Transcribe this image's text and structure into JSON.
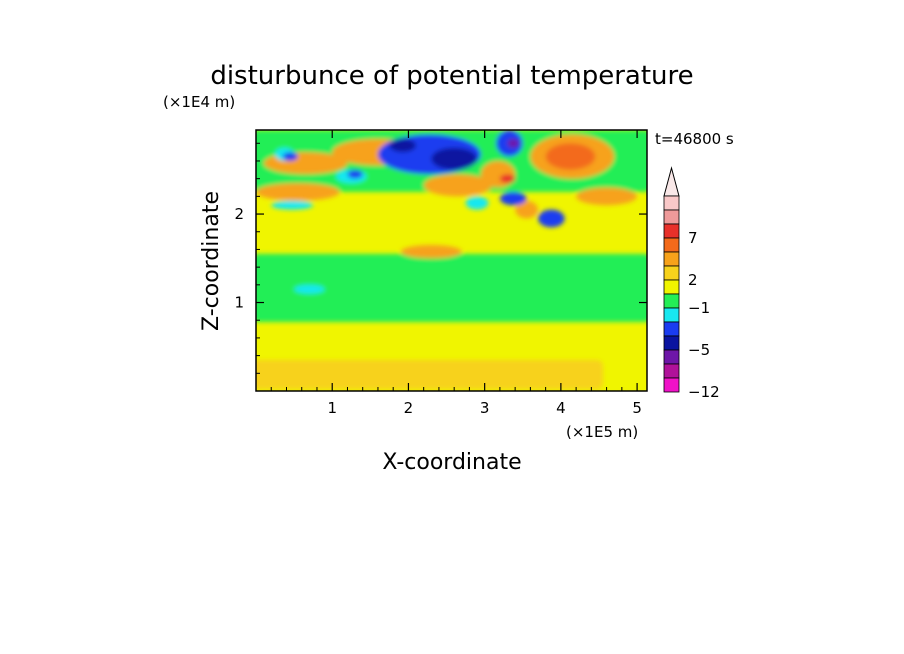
{
  "chart_data": {
    "type": "heatmap",
    "title": "disturbunce of potential temperature",
    "xlabel": "X-coordinate",
    "ylabel": "Z-coordinate",
    "x_unit": "(×1E5 m)",
    "y_unit": "(×1E4 m)",
    "time_label": "t=46800 s",
    "xlim": [
      0,
      5.13
    ],
    "ylim": [
      0,
      2.95
    ],
    "x_ticks": [
      {
        "value": 1,
        "label": "1"
      },
      {
        "value": 2,
        "label": "2"
      },
      {
        "value": 3,
        "label": "3"
      },
      {
        "value": 4,
        "label": "4"
      },
      {
        "value": 5,
        "label": "5"
      }
    ],
    "y_ticks": [
      {
        "value": 1,
        "label": "1"
      },
      {
        "value": 2,
        "label": "2"
      }
    ],
    "colorbar": {
      "labels": [
        {
          "value": 7,
          "label": "7"
        },
        {
          "value": 2,
          "label": "2"
        },
        {
          "value": -1,
          "label": "−1"
        },
        {
          "value": -5,
          "label": "−5"
        },
        {
          "value": -12,
          "label": "−12"
        }
      ],
      "levels_top_to_bottom": [
        {
          "color": "#f9c8c8"
        },
        {
          "color": "#ef9a9a"
        },
        {
          "color": "#e8302a"
        },
        {
          "color": "#f36a1a"
        },
        {
          "color": "#f7a21a"
        },
        {
          "color": "#f7d21c"
        },
        {
          "color": "#f0f500"
        },
        {
          "color": "#24ee56"
        },
        {
          "color": "#18e8f0"
        },
        {
          "color": "#1a3cf0"
        },
        {
          "color": "#0a14a0"
        },
        {
          "color": "#6e16a8"
        },
        {
          "color": "#b0129a"
        },
        {
          "color": "#f012c8"
        }
      ],
      "top_extension_color": "#f9e8e8"
    },
    "field": {
      "background": "#f0f500",
      "regions": [
        {
          "level": "green",
          "color": "#24ee56",
          "x": [
            0.0,
            5.13
          ],
          "z": [
            0.78,
            1.55
          ]
        },
        {
          "level": "green",
          "color": "#24ee56",
          "x": [
            0.0,
            5.13
          ],
          "z": [
            2.25,
            2.95
          ]
        },
        {
          "level": "orange",
          "color": "#f7a21a",
          "x": [
            0.1,
            1.2
          ],
          "z": [
            2.45,
            2.7
          ]
        },
        {
          "level": "orange",
          "color": "#f7a21a",
          "x": [
            1.0,
            2.2
          ],
          "z": [
            2.55,
            2.85
          ]
        },
        {
          "level": "orange",
          "color": "#f7a21a",
          "x": [
            2.2,
            3.1
          ],
          "z": [
            2.2,
            2.45
          ]
        },
        {
          "level": "orange",
          "color": "#f7a21a",
          "x": [
            3.6,
            4.7
          ],
          "z": [
            2.4,
            2.9
          ]
        },
        {
          "level": "dark-orange",
          "color": "#f36a1a",
          "x": [
            3.8,
            4.45
          ],
          "z": [
            2.5,
            2.8
          ]
        },
        {
          "level": "orange",
          "color": "#f7a21a",
          "x": [
            2.95,
            3.4
          ],
          "z": [
            2.3,
            2.6
          ]
        },
        {
          "level": "red",
          "color": "#e8302a",
          "x": [
            3.2,
            3.4
          ],
          "z": [
            2.35,
            2.45
          ]
        },
        {
          "level": "orange",
          "color": "#f7a21a",
          "x": [
            3.4,
            3.7
          ],
          "z": [
            1.95,
            2.15
          ]
        },
        {
          "level": "orange",
          "color": "#f7a21a",
          "x": [
            1.9,
            2.7
          ],
          "z": [
            1.5,
            1.65
          ]
        },
        {
          "level": "yellow-orange",
          "color": "#f7d21c",
          "x": [
            0.0,
            4.5
          ],
          "z": [
            0.02,
            0.35
          ]
        },
        {
          "level": "cyan",
          "color": "#18e8f0",
          "x": [
            0.25,
            0.5
          ],
          "z": [
            2.6,
            2.75
          ]
        },
        {
          "level": "cyan",
          "color": "#18e8f0",
          "x": [
            1.05,
            1.45
          ],
          "z": [
            2.35,
            2.5
          ]
        },
        {
          "level": "cyan",
          "color": "#18e8f0",
          "x": [
            0.2,
            0.75
          ],
          "z": [
            2.05,
            2.15
          ]
        },
        {
          "level": "cyan",
          "color": "#18e8f0",
          "x": [
            0.5,
            0.9
          ],
          "z": [
            1.1,
            1.2
          ]
        },
        {
          "level": "cyan",
          "color": "#18e8f0",
          "x": [
            2.75,
            3.05
          ],
          "z": [
            2.05,
            2.2
          ]
        },
        {
          "level": "blue",
          "color": "#1a3cf0",
          "x": [
            1.6,
            2.95
          ],
          "z": [
            2.45,
            2.9
          ]
        },
        {
          "level": "dark-blue",
          "color": "#0a14a0",
          "x": [
            1.75,
            2.1
          ],
          "z": [
            2.7,
            2.85
          ]
        },
        {
          "level": "dark-blue",
          "color": "#0a14a0",
          "x": [
            2.3,
            2.9
          ],
          "z": [
            2.5,
            2.75
          ]
        },
        {
          "level": "blue",
          "color": "#1a3cf0",
          "x": [
            3.15,
            3.5
          ],
          "z": [
            2.65,
            2.95
          ]
        },
        {
          "level": "purple",
          "color": "#6e16a8",
          "x": [
            3.3,
            3.45
          ],
          "z": [
            2.75,
            2.85
          ]
        },
        {
          "level": "blue",
          "color": "#1a3cf0",
          "x": [
            0.35,
            0.55
          ],
          "z": [
            2.6,
            2.7
          ]
        },
        {
          "level": "blue",
          "color": "#1a3cf0",
          "x": [
            1.2,
            1.4
          ],
          "z": [
            2.4,
            2.5
          ]
        },
        {
          "level": "blue",
          "color": "#1a3cf0",
          "x": [
            3.2,
            3.55
          ],
          "z": [
            2.1,
            2.25
          ]
        },
        {
          "level": "blue",
          "color": "#1a3cf0",
          "x": [
            3.7,
            4.05
          ],
          "z": [
            1.85,
            2.05
          ]
        },
        {
          "level": "orange",
          "color": "#f7a21a",
          "x": [
            4.2,
            5.0
          ],
          "z": [
            2.1,
            2.3
          ]
        },
        {
          "level": "orange",
          "color": "#f7a21a",
          "x": [
            0.0,
            1.1
          ],
          "z": [
            2.15,
            2.35
          ]
        }
      ]
    }
  }
}
